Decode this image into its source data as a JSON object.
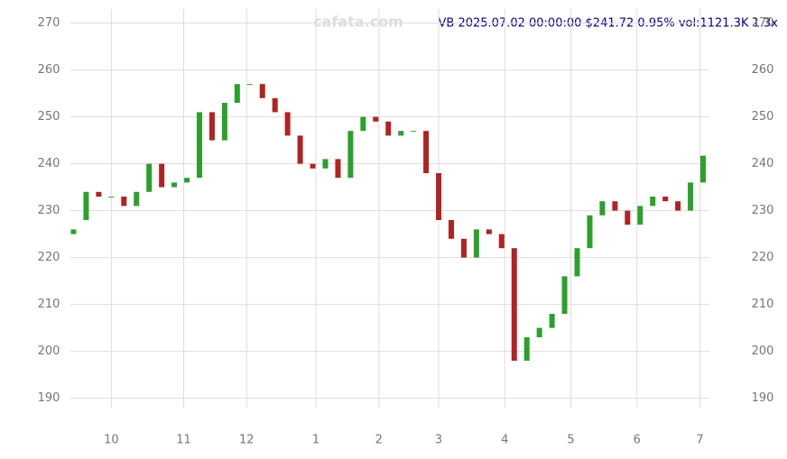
{
  "chart_data": {
    "type": "candlestick",
    "title": "VB 2025.07.02 00:00:00 $241.72 0.95% vol:1121.3K 1.3x",
    "watermark": "cafata.com",
    "x": [
      0,
      4,
      8,
      12,
      16,
      20,
      24,
      28,
      32,
      36,
      40,
      44,
      48,
      52,
      56,
      60,
      64,
      68,
      72,
      76,
      80,
      84,
      88,
      92,
      96,
      100,
      104,
      108,
      112,
      116,
      120,
      124,
      128,
      132,
      136,
      140,
      144,
      148,
      152,
      156,
      160,
      164,
      168,
      172,
      176,
      180,
      184,
      188,
      192,
      196,
      200
    ],
    "open": [
      225,
      228,
      234,
      233,
      233,
      231,
      234,
      240,
      235,
      236,
      237,
      251,
      245,
      253,
      257,
      257,
      254,
      251,
      246,
      240,
      239,
      241,
      237,
      247,
      250,
      249,
      246,
      247,
      247,
      238,
      228,
      224,
      220,
      226,
      225,
      222,
      198,
      203,
      205,
      208,
      216,
      222,
      229,
      232,
      230,
      227,
      231,
      233,
      232,
      230,
      236
    ],
    "close": [
      226,
      234,
      233,
      233,
      231,
      234,
      240,
      235,
      236,
      237,
      251,
      245,
      253,
      257,
      257,
      254,
      251,
      246,
      240,
      239,
      241,
      237,
      247,
      250,
      249,
      246,
      247,
      247,
      238,
      228,
      224,
      220,
      226,
      225,
      222,
      198,
      203,
      205,
      208,
      216,
      222,
      229,
      232,
      230,
      227,
      231,
      233,
      232,
      230,
      236,
      241.72
    ],
    "up_color": "#2ca02c",
    "down_color": "#b22222",
    "xlim": [
      -1,
      202
    ],
    "xticks": [
      {
        "value": 12,
        "label": "10"
      },
      {
        "value": 35,
        "label": "11"
      },
      {
        "value": 55,
        "label": "12"
      },
      {
        "value": 77,
        "label": "1"
      },
      {
        "value": 97,
        "label": "2"
      },
      {
        "value": 116,
        "label": "3"
      },
      {
        "value": 137,
        "label": "4"
      },
      {
        "value": 158,
        "label": "5"
      },
      {
        "value": 179,
        "label": "6"
      },
      {
        "value": 199,
        "label": "7"
      }
    ],
    "ylim": [
      188,
      273
    ],
    "yticks": [
      190,
      200,
      210,
      220,
      230,
      240,
      250,
      260,
      270
    ],
    "grid": true
  }
}
